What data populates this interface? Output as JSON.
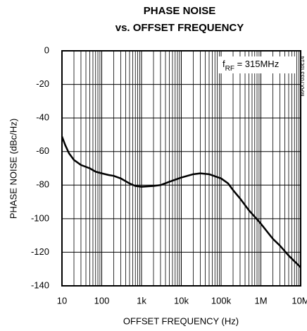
{
  "chart_data": {
    "type": "line",
    "title": [
      "PHASE NOISE",
      "vs. OFFSET FREQUENCY"
    ],
    "x_label": "OFFSET FREQUENCY (Hz)",
    "y_label": "PHASE NOISE (dBc/Hz)",
    "annotation": {
      "base": "f",
      "sub": "RF",
      "rest": " = 315MHz"
    },
    "figure_id": "MAX7033 toc14",
    "x": [
      10,
      12,
      15,
      20,
      30,
      50,
      70,
      100,
      150,
      200,
      300,
      500,
      700,
      1000,
      2000,
      3000,
      5000,
      10000,
      20000,
      30000,
      50000,
      100000,
      150000,
      200000,
      300000,
      500000,
      1000000,
      2000000,
      3000000,
      5000000,
      10000000
    ],
    "values": [
      -51,
      -56,
      -61,
      -65,
      -68,
      -70,
      -72,
      -73,
      -74,
      -74.5,
      -76,
      -79,
      -80.5,
      -81,
      -80.5,
      -80,
      -78,
      -75.5,
      -73.5,
      -73,
      -73.5,
      -76,
      -79,
      -83,
      -88,
      -95,
      -103,
      -112,
      -116,
      -122,
      -129
    ],
    "color": "#000000",
    "xscale": "log",
    "xlim": [
      10,
      10000000
    ],
    "xticks": [
      10,
      100,
      {
        "value": 1000,
        "label": "1k"
      },
      {
        "value": 10000,
        "label": "10k"
      },
      {
        "value": 100000,
        "label": "100k"
      },
      {
        "value": 1000000,
        "label": "1M"
      },
      {
        "value": 10000000,
        "label": "10M"
      }
    ],
    "ylim": [
      -140,
      0
    ],
    "yticks": [
      0,
      -20,
      -40,
      -60,
      -80,
      -100,
      -120,
      -140
    ],
    "grid": true,
    "minor_grid": true
  }
}
